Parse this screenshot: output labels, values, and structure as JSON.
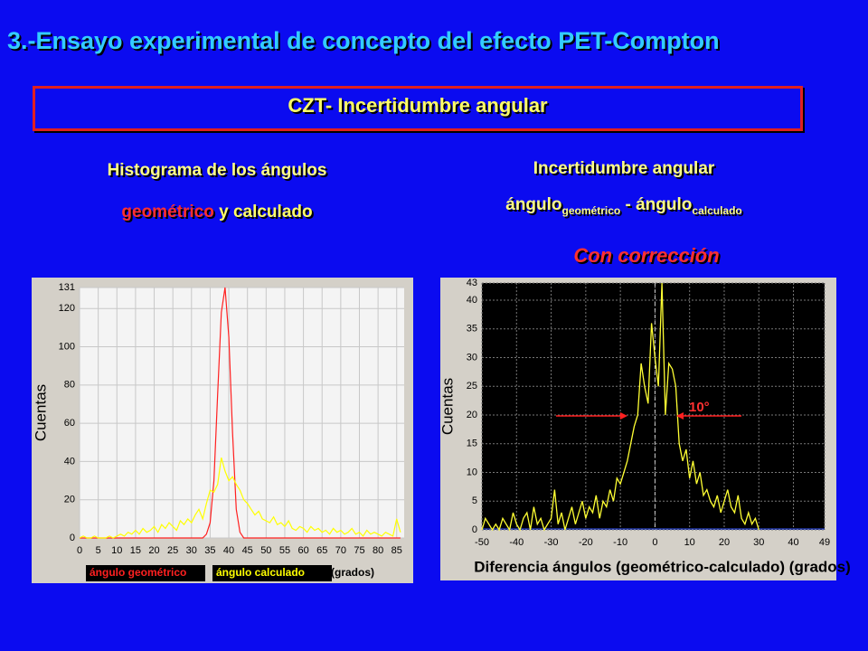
{
  "slide": {
    "title": "3.-Ensayo experimental de concepto del efecto PET-Compton",
    "box_title": "CZT- Incertidumbre angular",
    "left_heading": {
      "line1": "Histograma de los ángulos",
      "part1": "geométrico",
      "part2": "y",
      "part3": "calculado"
    },
    "right_heading": {
      "line1": "Incertidumbre angular",
      "word1": "ángulo",
      "sub1": "geométrico",
      "dash": "-",
      "word2": "ángulo",
      "sub2": "calculado"
    },
    "note": "Con corrección"
  },
  "chart_data": [
    {
      "type": "line",
      "y_label": "Cuentas",
      "x_label": "(grados)",
      "x": [
        0,
        1,
        2,
        3,
        4,
        5,
        6,
        7,
        8,
        9,
        10,
        11,
        12,
        13,
        14,
        15,
        16,
        17,
        18,
        19,
        20,
        21,
        22,
        23,
        24,
        25,
        26,
        27,
        28,
        29,
        30,
        31,
        32,
        33,
        34,
        35,
        36,
        37,
        38,
        39,
        40,
        41,
        42,
        43,
        44,
        45,
        46,
        47,
        48,
        49,
        50,
        51,
        52,
        53,
        54,
        55,
        56,
        57,
        58,
        59,
        60,
        61,
        62,
        63,
        64,
        65,
        66,
        67,
        68,
        69,
        70,
        71,
        72,
        73,
        74,
        75,
        76,
        77,
        78,
        79,
        80,
        81,
        82,
        83,
        84,
        85,
        86
      ],
      "series": [
        {
          "name": "ángulo geométrico",
          "color": "#ff2020",
          "values": [
            0,
            0,
            0,
            0,
            0,
            0,
            0,
            0,
            0,
            0,
            0,
            0,
            0,
            0,
            0,
            0,
            0,
            0,
            0,
            0,
            0,
            0,
            0,
            0,
            0,
            0,
            0,
            0,
            0,
            0,
            0,
            0,
            0,
            0,
            2,
            8,
            30,
            75,
            118,
            131,
            105,
            55,
            15,
            3,
            0,
            0,
            0,
            0,
            0,
            0,
            0,
            0,
            0,
            0,
            0,
            0,
            0,
            0,
            0,
            0,
            0,
            0,
            0,
            0,
            0,
            0,
            0,
            0,
            0,
            0,
            0,
            0,
            0,
            0,
            0,
            0,
            0,
            0,
            0,
            0,
            0,
            0,
            0,
            0,
            0,
            0,
            0
          ]
        },
        {
          "name": "ángulo calculado",
          "color": "#ffff00",
          "values": [
            0,
            1,
            0,
            0,
            1,
            0,
            0,
            0,
            1,
            0,
            1,
            2,
            1,
            3,
            2,
            4,
            2,
            5,
            3,
            4,
            6,
            3,
            7,
            5,
            8,
            6,
            4,
            9,
            7,
            10,
            8,
            12,
            15,
            10,
            18,
            25,
            24,
            28,
            42,
            35,
            30,
            32,
            28,
            25,
            20,
            18,
            15,
            12,
            14,
            10,
            9,
            8,
            11,
            7,
            8,
            6,
            9,
            5,
            4,
            6,
            5,
            3,
            6,
            4,
            5,
            3,
            4,
            2,
            5,
            3,
            4,
            2,
            3,
            5,
            2,
            3,
            1,
            4,
            2,
            3,
            2,
            1,
            3,
            2,
            1,
            10,
            3
          ]
        }
      ],
      "xlim": [
        0,
        87
      ],
      "xticks": [
        0,
        5,
        10,
        15,
        20,
        25,
        30,
        35,
        40,
        45,
        50,
        55,
        60,
        65,
        70,
        75,
        80,
        85
      ],
      "ylim": [
        0,
        131
      ],
      "yticks": [
        0,
        20,
        40,
        60,
        80,
        100,
        120,
        131
      ],
      "grid": true
    },
    {
      "type": "line",
      "y_label": "Cuentas",
      "x_label": "Diferencia ángulos (geométrico-calculado) (grados)",
      "annotation": "10°",
      "x": [
        -50,
        -49,
        -48,
        -47,
        -46,
        -45,
        -44,
        -43,
        -42,
        -41,
        -40,
        -39,
        -38,
        -37,
        -36,
        -35,
        -34,
        -33,
        -32,
        -31,
        -30,
        -29,
        -28,
        -27,
        -26,
        -25,
        -24,
        -23,
        -22,
        -21,
        -20,
        -19,
        -18,
        -17,
        -16,
        -15,
        -14,
        -13,
        -12,
        -11,
        -10,
        -9,
        -8,
        -7,
        -6,
        -5,
        -4,
        -3,
        -2,
        -1,
        0,
        1,
        2,
        3,
        4,
        5,
        6,
        7,
        8,
        9,
        10,
        11,
        12,
        13,
        14,
        15,
        16,
        17,
        18,
        19,
        20,
        21,
        22,
        23,
        24,
        25,
        26,
        27,
        28,
        29,
        30
      ],
      "values": [
        0,
        2,
        1,
        0,
        1,
        0,
        2,
        1,
        0,
        3,
        1,
        0,
        2,
        3,
        0,
        4,
        1,
        2,
        0,
        1,
        2,
        7,
        1,
        3,
        0,
        2,
        4,
        1,
        3,
        5,
        2,
        4,
        3,
        6,
        2,
        5,
        4,
        7,
        5,
        9,
        8,
        10,
        12,
        15,
        18,
        20,
        29,
        25,
        22,
        36,
        30,
        25,
        43,
        20,
        29,
        28,
        25,
        15,
        12,
        14,
        9,
        12,
        8,
        10,
        6,
        7,
        5,
        4,
        6,
        3,
        5,
        7,
        4,
        3,
        6,
        2,
        1,
        3,
        1,
        2,
        0
      ],
      "color": "#ffff33",
      "xlim": [
        -50,
        49
      ],
      "xticks": [
        -50,
        -40,
        -30,
        -20,
        -10,
        0,
        10,
        20,
        30,
        40,
        49
      ],
      "ylim": [
        0,
        43
      ],
      "yticks": [
        0,
        5,
        10,
        15,
        20,
        25,
        30,
        35,
        40,
        43
      ],
      "grid": true
    }
  ]
}
